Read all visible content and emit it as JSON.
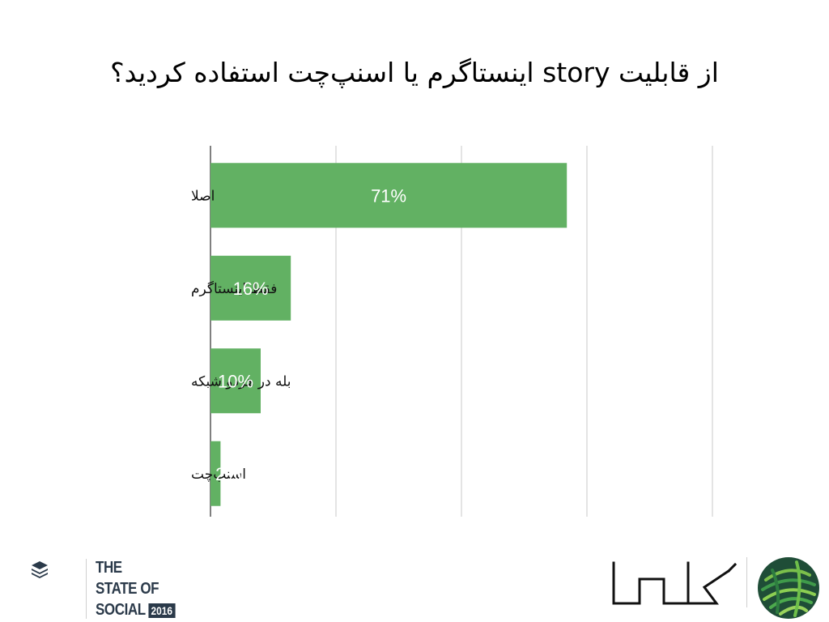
{
  "chart_data": {
    "type": "bar",
    "orientation": "horizontal",
    "title": "از قابلیت story اینستاگرم یا اسنپ‌چت استفاده کردید؟",
    "categories": [
      "اصلا",
      "فقط اینستاگرم",
      "بله در هردو شبکه",
      "اسنپ‌چت"
    ],
    "values": [
      71,
      16,
      10,
      2
    ],
    "value_labels": [
      "71%",
      "16%",
      "10%",
      "2%"
    ],
    "xlim": [
      0,
      100
    ],
    "grid": true,
    "bar_color": "#62b163"
  },
  "footer": {
    "left_logo": {
      "line1": "THE",
      "line2": "STATE OF",
      "line3": "SOCIAL",
      "year": "2016",
      "icon": "stack-layers-icon"
    },
    "right_logo": {
      "wordmark": "کامـوا",
      "icon": "yarn-ball-icon"
    }
  }
}
